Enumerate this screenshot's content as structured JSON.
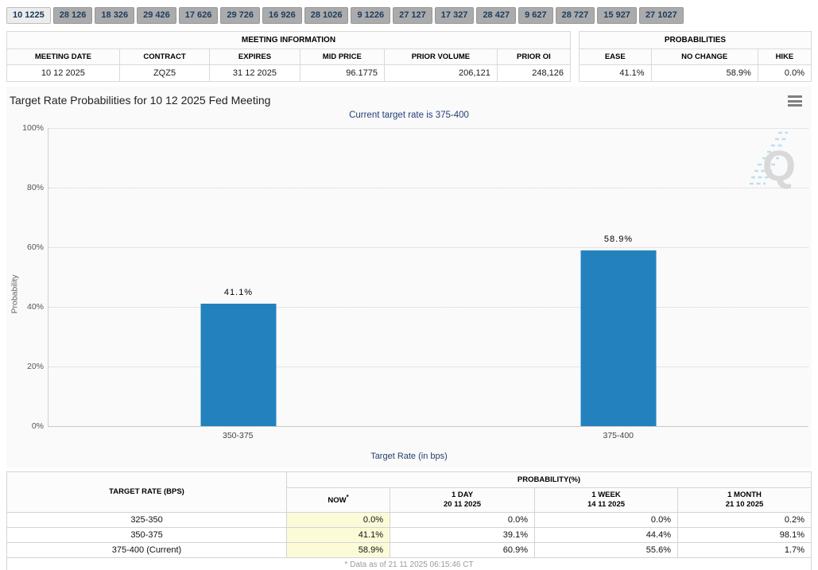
{
  "tabs": {
    "items": [
      {
        "label": "10 1225",
        "active": true
      },
      {
        "label": "28 126",
        "active": false
      },
      {
        "label": "18 326",
        "active": false
      },
      {
        "label": "29 426",
        "active": false
      },
      {
        "label": "17 626",
        "active": false
      },
      {
        "label": "29 726",
        "active": false
      },
      {
        "label": "16 926",
        "active": false
      },
      {
        "label": "28 1026",
        "active": false
      },
      {
        "label": "9 1226",
        "active": false
      },
      {
        "label": "27 127",
        "active": false
      },
      {
        "label": "17 327",
        "active": false
      },
      {
        "label": "28 427",
        "active": false
      },
      {
        "label": "9 627",
        "active": false
      },
      {
        "label": "28 727",
        "active": false
      },
      {
        "label": "15 927",
        "active": false
      },
      {
        "label": "27 1027",
        "active": false
      }
    ]
  },
  "meeting_info": {
    "title": "MEETING INFORMATION",
    "columns": [
      "MEETING DATE",
      "CONTRACT",
      "EXPIRES",
      "MID PRICE",
      "PRIOR VOLUME",
      "PRIOR OI"
    ],
    "row": {
      "meeting_date": "10 12 2025",
      "contract": "ZQZ5",
      "expires": "31 12 2025",
      "mid_price": "96.1775",
      "prior_volume": "206,121",
      "prior_oi": "248,126"
    }
  },
  "probabilities_summary": {
    "title": "PROBABILITIES",
    "columns": [
      "EASE",
      "NO CHANGE",
      "HIKE"
    ],
    "row": {
      "ease": "41.1%",
      "no_change": "58.9%",
      "hike": "0.0%"
    }
  },
  "chart_data": {
    "type": "bar",
    "title": "Target Rate Probabilities for 10 12 2025 Fed Meeting",
    "subtitle": "Current target rate is 375-400",
    "categories": [
      "350-375",
      "375-400"
    ],
    "values": [
      41.1,
      58.9
    ],
    "labels": [
      "41.1%",
      "58.9%"
    ],
    "xlabel": "Target Rate (in bps)",
    "ylabel": "Probability",
    "ylim": [
      0,
      100
    ],
    "yticks": [
      "100%",
      "80%",
      "60%",
      "40%",
      "20%",
      "0%"
    ],
    "grid": "horizontal-dotted",
    "legend": "none",
    "bar_color": "#2381be",
    "watermark": "Q"
  },
  "probability_table": {
    "col1_header": "TARGET RATE (BPS)",
    "group_header": "PROBABILITY(%)",
    "sub_headers": [
      {
        "line1": "NOW",
        "sup": "*",
        "line2": ""
      },
      {
        "line1": "1 DAY",
        "line2": "20 11 2025"
      },
      {
        "line1": "1 WEEK",
        "line2": "14 11 2025"
      },
      {
        "line1": "1 MONTH",
        "line2": "21 10 2025"
      }
    ],
    "rows": [
      {
        "target": "325-350",
        "now": "0.0%",
        "day1": "0.0%",
        "week1": "0.0%",
        "month1": "0.2%"
      },
      {
        "target": "350-375",
        "now": "41.1%",
        "day1": "39.1%",
        "week1": "44.4%",
        "month1": "98.1%"
      },
      {
        "target": "375-400 (Current)",
        "now": "58.9%",
        "day1": "60.9%",
        "week1": "55.6%",
        "month1": "1.7%"
      }
    ],
    "footnote": "* Data as of 21 11 2025 06:15:46 CT"
  },
  "colors": {
    "bar": "#2381be",
    "now_highlight": "#fbfbd8",
    "bottom_bar": "#284a87",
    "tab_text": "#1b3c5f",
    "subtitle_text": "#24417a"
  }
}
